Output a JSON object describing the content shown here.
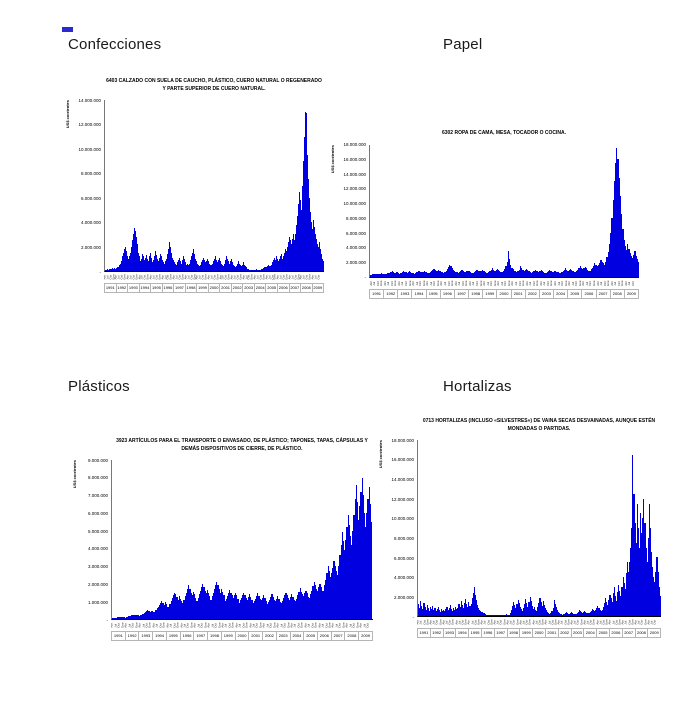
{
  "page": {
    "background": "#ffffff"
  },
  "colors": {
    "bar": "#0000E0",
    "axis": "#000000",
    "year_box_border": "#b5b5b5"
  },
  "sections": [
    {
      "heading": "Confecciones"
    },
    {
      "heading": "Papel"
    },
    {
      "heading": "Plásticos"
    },
    {
      "heading": "Hortalizas"
    }
  ],
  "chart_data": [
    {
      "type": "bar",
      "section": "Confecciones",
      "title": "6403 CALZADO CON SUELA DE CAUCHO, PLÁSTICO, CUERO NATURAL O REGENERADO Y PARTE SUPERIOR DE CUERO NATURAL.",
      "ylabel": "US$ corrientes",
      "unit": "millones de US$ corrientes",
      "frequency": "mensual",
      "x_range": "Ene 1991 - Jun 2009",
      "ylim": [
        0,
        14
      ],
      "grid": false,
      "legend": "none",
      "y_ticks": [
        {
          "label": "14.000.000",
          "value": 14
        },
        {
          "label": "12.000.000",
          "value": 12
        },
        {
          "label": "10.000.000",
          "value": 10
        },
        {
          "label": "8.000.000",
          "value": 8
        },
        {
          "label": "6.000.000",
          "value": 6
        },
        {
          "label": "4.000.000",
          "value": 4
        },
        {
          "label": "2.000.000",
          "value": 2
        },
        {
          "label": "-",
          "value": 0
        }
      ],
      "years": [
        "1991",
        "1992",
        "1993",
        "1994",
        "1995",
        "1996",
        "1997",
        "1998",
        "1999",
        "2000",
        "2001",
        "2002",
        "2003",
        "2004",
        "2005",
        "2006",
        "2007",
        "2008",
        "2009"
      ],
      "month_ticks": [
        "Ene",
        "Abr",
        "Jul",
        "Oct"
      ],
      "values_millions": [
        0.1,
        0.12,
        0.15,
        0.12,
        0.18,
        0.15,
        0.2,
        0.22,
        0.18,
        0.25,
        0.2,
        0.28,
        0.3,
        0.35,
        0.5,
        0.6,
        0.8,
        1.2,
        1.5,
        1.8,
        2.0,
        1.6,
        1.2,
        1.0,
        1.2,
        1.5,
        2.0,
        2.5,
        3.0,
        3.5,
        3.3,
        2.8,
        2.2,
        1.8,
        1.5,
        1.2,
        0.8,
        1.0,
        1.4,
        1.2,
        0.9,
        1.1,
        1.3,
        1.0,
        0.8,
        1.2,
        1.5,
        1.1,
        0.7,
        0.9,
        1.2,
        1.6,
        1.3,
        1.0,
        0.8,
        1.1,
        1.4,
        1.2,
        0.9,
        0.7,
        0.6,
        0.8,
        1.0,
        1.4,
        1.8,
        2.4,
        2.0,
        1.5,
        1.1,
        0.9,
        0.7,
        0.6,
        0.5,
        0.7,
        0.9,
        1.1,
        0.8,
        0.6,
        0.9,
        1.2,
        1.0,
        0.7,
        0.5,
        0.6,
        0.5,
        0.6,
        0.9,
        1.2,
        1.5,
        1.8,
        1.4,
        1.0,
        0.8,
        0.6,
        0.5,
        0.4,
        0.4,
        0.5,
        0.7,
        0.9,
        1.1,
        0.9,
        0.7,
        0.8,
        1.0,
        0.8,
        0.6,
        0.5,
        0.5,
        0.6,
        0.8,
        1.0,
        1.2,
        0.9,
        0.7,
        0.9,
        1.1,
        0.8,
        0.6,
        0.5,
        0.4,
        0.6,
        0.9,
        1.2,
        1.0,
        0.8,
        0.6,
        0.8,
        1.0,
        0.7,
        0.5,
        0.4,
        0.3,
        0.4,
        0.6,
        0.8,
        0.6,
        0.5,
        0.4,
        0.5,
        0.7,
        0.5,
        0.4,
        0.3,
        0.2,
        0.15,
        0.1,
        0.08,
        0.1,
        0.12,
        0.1,
        0.08,
        0.1,
        0.15,
        0.12,
        0.1,
        0.1,
        0.12,
        0.15,
        0.2,
        0.25,
        0.2,
        0.3,
        0.35,
        0.3,
        0.4,
        0.5,
        0.45,
        0.4,
        0.5,
        0.7,
        0.9,
        1.1,
        0.9,
        1.2,
        1.0,
        0.8,
        1.0,
        1.2,
        1.4,
        1.0,
        1.2,
        1.5,
        1.8,
        1.6,
        2.0,
        2.4,
        2.8,
        2.5,
        2.2,
        2.6,
        3.0,
        2.5,
        3.0,
        3.8,
        4.5,
        5.5,
        6.5,
        5.8,
        5.0,
        7.0,
        9.0,
        11.0,
        13.0,
        12.9,
        9.5,
        7.5,
        6.0,
        4.8,
        4.0,
        3.4,
        4.2,
        3.6,
        3.0,
        2.6,
        2.2,
        2.0,
        2.4,
        1.8,
        1.4,
        1.0,
        0.8
      ]
    },
    {
      "type": "bar",
      "section": "Papel",
      "title": "6302 ROPA DE CAMA, MESA, TOCADOR O COCINA.",
      "ylabel": "US$ corrientes",
      "unit": "millones de US$ corrientes",
      "frequency": "mensual",
      "x_range": "Ene 1991 - Jun 2009",
      "ylim": [
        0,
        18
      ],
      "grid": false,
      "legend": "none",
      "y_ticks": [
        {
          "label": "18.000.000",
          "value": 18
        },
        {
          "label": "16.000.000",
          "value": 16
        },
        {
          "label": "14.000.000",
          "value": 14
        },
        {
          "label": "12.000.000",
          "value": 12
        },
        {
          "label": "10.000.000",
          "value": 10
        },
        {
          "label": "8.000.000",
          "value": 8
        },
        {
          "label": "6.000.000",
          "value": 6
        },
        {
          "label": "4.000.000",
          "value": 4
        },
        {
          "label": "2.000.000",
          "value": 2
        },
        {
          "label": "-",
          "value": 0
        }
      ],
      "years": [
        "1991",
        "1992",
        "1993",
        "1994",
        "1995",
        "1996",
        "1997",
        "1998",
        "1999",
        "2000",
        "2001",
        "2002",
        "2003",
        "2004",
        "2005",
        "2006",
        "2007",
        "2008",
        "2009"
      ],
      "month_ticks": [
        "Ene",
        "Abr",
        "Jul",
        "Oct"
      ],
      "values_millions": [
        0.2,
        0.25,
        0.3,
        0.28,
        0.35,
        0.3,
        0.4,
        0.35,
        0.3,
        0.45,
        0.4,
        0.35,
        0.3,
        0.4,
        0.5,
        0.45,
        0.6,
        0.55,
        0.7,
        0.6,
        0.5,
        0.65,
        0.55,
        0.45,
        0.4,
        0.5,
        0.6,
        0.7,
        0.65,
        0.55,
        0.5,
        0.6,
        0.7,
        0.6,
        0.5,
        0.45,
        0.4,
        0.5,
        0.65,
        0.8,
        0.7,
        0.6,
        0.55,
        0.65,
        0.75,
        0.65,
        0.55,
        0.5,
        0.5,
        0.6,
        0.75,
        0.9,
        1.0,
        0.85,
        0.7,
        0.8,
        0.9,
        0.75,
        0.6,
        0.55,
        0.5,
        0.65,
        0.8,
        1.0,
        1.3,
        1.6,
        1.4,
        1.1,
        0.9,
        0.75,
        0.6,
        0.55,
        0.5,
        0.6,
        0.7,
        0.85,
        0.75,
        0.65,
        0.6,
        0.7,
        0.8,
        0.7,
        0.6,
        0.5,
        0.45,
        0.55,
        0.7,
        0.85,
        0.95,
        0.8,
        0.7,
        0.8,
        0.9,
        0.75,
        0.6,
        0.5,
        0.5,
        0.6,
        0.75,
        0.9,
        1.1,
        0.95,
        0.8,
        0.9,
        1.0,
        0.85,
        0.7,
        0.6,
        0.6,
        0.8,
        1.0,
        1.4,
        2.0,
        3.5,
        2.4,
        1.6,
        1.2,
        1.0,
        0.8,
        0.7,
        0.6,
        0.7,
        0.9,
        1.5,
        1.2,
        0.9,
        0.8,
        0.9,
        1.0,
        0.85,
        0.7,
        0.6,
        0.5,
        0.6,
        0.75,
        0.9,
        0.8,
        0.7,
        0.65,
        0.75,
        0.85,
        0.7,
        0.6,
        0.5,
        0.45,
        0.55,
        0.7,
        0.85,
        0.75,
        0.65,
        0.6,
        0.7,
        0.8,
        0.65,
        0.55,
        0.5,
        0.5,
        0.6,
        0.75,
        0.95,
        1.1,
        0.9,
        0.8,
        0.9,
        1.05,
        0.9,
        0.75,
        0.65,
        0.6,
        0.75,
        0.95,
        1.2,
        1.4,
        1.2,
        1.0,
        1.1,
        1.3,
        1.1,
        0.9,
        0.8,
        0.8,
        1.0,
        1.2,
        1.5,
        1.8,
        1.6,
        1.4,
        1.6,
        1.9,
        2.2,
        2.0,
        1.8,
        1.6,
        2.0,
        2.6,
        3.4,
        4.5,
        6.0,
        8.0,
        10.5,
        13.0,
        15.5,
        17.5,
        16.0,
        13.5,
        11.0,
        8.5,
        6.5,
        5.0,
        4.2,
        3.6,
        4.4,
        3.8,
        3.2,
        2.8,
        2.5,
        3.0,
        3.5,
        2.8,
        2.4,
        2.0,
        1.6
      ]
    },
    {
      "type": "bar",
      "section": "Plásticos",
      "title": "3923 ARTÍCULOS PARA EL TRANSPORTE O ENVASADO, DE PLÁSTICO; TAPONES, TAPAS, CÁPSULAS Y DEMÁS DISPOSITIVOS DE CIERRE, DE PLÁSTICO.",
      "ylabel": "US$ corrientes",
      "unit": "millones de US$ corrientes",
      "frequency": "mensual",
      "x_range": "Ene 1991 - Jun 2009",
      "ylim": [
        0,
        9
      ],
      "grid": false,
      "legend": "none",
      "y_ticks": [
        {
          "label": "9.000.000",
          "value": 9
        },
        {
          "label": "8.000.000",
          "value": 8
        },
        {
          "label": "7.000.000",
          "value": 7
        },
        {
          "label": "6.000.000",
          "value": 6
        },
        {
          "label": "5.000.000",
          "value": 5
        },
        {
          "label": "4.000.000",
          "value": 4
        },
        {
          "label": "3.000.000",
          "value": 3
        },
        {
          "label": "2.000.000",
          "value": 2
        },
        {
          "label": "1.000.000",
          "value": 1
        },
        {
          "label": "-",
          "value": 0
        }
      ],
      "years": [
        "1991",
        "1992",
        "1993",
        "1994",
        "1995",
        "1996",
        "1997",
        "1998",
        "1999",
        "2000",
        "2001",
        "2002",
        "2003",
        "2004",
        "2005",
        "2006",
        "2007",
        "2008",
        "2009"
      ],
      "month_ticks": [
        "Ene",
        "Abr",
        "Jul",
        "Oct"
      ],
      "values_millions": [
        0.05,
        0.06,
        0.08,
        0.07,
        0.09,
        0.1,
        0.12,
        0.1,
        0.09,
        0.11,
        0.1,
        0.08,
        0.1,
        0.12,
        0.15,
        0.18,
        0.2,
        0.22,
        0.25,
        0.22,
        0.2,
        0.24,
        0.22,
        0.18,
        0.2,
        0.25,
        0.3,
        0.35,
        0.4,
        0.45,
        0.5,
        0.45,
        0.4,
        0.48,
        0.44,
        0.38,
        0.4,
        0.5,
        0.6,
        0.7,
        0.8,
        0.9,
        1.0,
        0.9,
        0.8,
        0.95,
        0.85,
        0.7,
        0.7,
        0.85,
        1.0,
        1.2,
        1.35,
        1.5,
        1.4,
        1.25,
        1.1,
        1.3,
        1.15,
        1.0,
        0.9,
        1.1,
        1.3,
        1.5,
        1.7,
        1.9,
        1.7,
        1.5,
        1.35,
        1.55,
        1.4,
        1.2,
        1.0,
        1.2,
        1.4,
        1.6,
        1.8,
        2.0,
        1.8,
        1.6,
        1.45,
        1.65,
        1.5,
        1.3,
        1.1,
        1.3,
        1.5,
        1.7,
        1.9,
        2.1,
        1.9,
        1.7,
        1.5,
        1.7,
        1.55,
        1.35,
        1.0,
        1.15,
        1.3,
        1.5,
        1.65,
        1.5,
        1.35,
        1.2,
        1.35,
        1.5,
        1.35,
        1.15,
        0.9,
        1.05,
        1.2,
        1.35,
        1.5,
        1.35,
        1.2,
        1.1,
        1.25,
        1.4,
        1.25,
        1.05,
        0.9,
        1.0,
        1.15,
        1.3,
        1.45,
        1.3,
        1.15,
        1.05,
        1.2,
        1.35,
        1.2,
        1.0,
        0.85,
        0.95,
        1.1,
        1.25,
        1.4,
        1.25,
        1.1,
        1.0,
        1.15,
        1.3,
        1.15,
        0.95,
        0.9,
        1.0,
        1.2,
        1.35,
        1.5,
        1.35,
        1.2,
        1.1,
        1.25,
        1.4,
        1.25,
        1.05,
        1.0,
        1.15,
        1.35,
        1.55,
        1.75,
        1.55,
        1.4,
        1.3,
        1.45,
        1.6,
        1.45,
        1.25,
        1.2,
        1.4,
        1.6,
        1.85,
        2.1,
        1.9,
        1.7,
        1.6,
        1.8,
        2.0,
        1.8,
        1.6,
        1.6,
        1.9,
        2.2,
        2.6,
        3.0,
        2.7,
        2.4,
        2.6,
        2.9,
        3.3,
        3.0,
        2.7,
        2.5,
        3.0,
        3.6,
        4.2,
        4.9,
        4.4,
        3.9,
        4.5,
        5.2,
        5.9,
        5.3,
        4.7,
        4.2,
        5.0,
        5.9,
        6.8,
        7.6,
        6.6,
        5.6,
        6.4,
        7.2,
        8.0,
        7.0,
        6.0,
        5.2,
        6.0,
        6.8,
        7.5,
        6.5,
        5.5
      ]
    },
    {
      "type": "bar",
      "section": "Hortalizas",
      "title": "0713 HORTALIZAS (INCLUSO «SILVESTRES») DE VAINA SECAS DESVAINADAS, AUNQUE ESTÉN MONDADAS O PARTIDAS.",
      "ylabel": "US$ corrientes",
      "unit": "millones de US$ corrientes",
      "frequency": "mensual",
      "x_range": "Ene 1991 - Jun 2009",
      "ylim": [
        0,
        18
      ],
      "grid": false,
      "legend": "none",
      "y_ticks": [
        {
          "label": "18.000.000",
          "value": 18
        },
        {
          "label": "16.000.000",
          "value": 16
        },
        {
          "label": "14.000.000",
          "value": 14
        },
        {
          "label": "12.000.000",
          "value": 12
        },
        {
          "label": "10.000.000",
          "value": 10
        },
        {
          "label": "8.000.000",
          "value": 8
        },
        {
          "label": "6.000.000",
          "value": 6
        },
        {
          "label": "4.000.000",
          "value": 4
        },
        {
          "label": "2.000.000",
          "value": 2
        },
        {
          "label": "-",
          "value": 0
        }
      ],
      "years": [
        "1991",
        "1992",
        "1993",
        "1994",
        "1995",
        "1996",
        "1997",
        "1998",
        "1999",
        "2000",
        "2001",
        "2002",
        "2003",
        "2004",
        "2005",
        "2006",
        "2007",
        "2008",
        "2009"
      ],
      "month_ticks": [
        "Ene",
        "Abr",
        "Jul",
        "Oct"
      ],
      "values_millions": [
        1.2,
        0.8,
        1.5,
        1.0,
        0.7,
        1.3,
        0.9,
        0.6,
        1.1,
        0.8,
        0.5,
        0.9,
        0.7,
        1.0,
        0.6,
        0.8,
        0.5,
        0.7,
        0.9,
        0.6,
        0.4,
        0.7,
        0.5,
        0.6,
        0.5,
        0.7,
        0.9,
        0.6,
        0.8,
        1.1,
        0.7,
        0.5,
        0.8,
        0.6,
        0.9,
        0.7,
        0.8,
        1.2,
        0.9,
        1.5,
        1.1,
        0.8,
        1.3,
        1.7,
        1.2,
        0.9,
        1.4,
        1.0,
        1.2,
        1.8,
        2.4,
        3.0,
        2.2,
        1.6,
        1.1,
        0.8,
        0.6,
        0.5,
        0.4,
        0.3,
        0.3,
        0.2,
        0.15,
        0.1,
        0.12,
        0.1,
        0.08,
        0.1,
        0.12,
        0.1,
        0.08,
        0.1,
        0.1,
        0.12,
        0.15,
        0.1,
        0.08,
        0.1,
        0.12,
        0.15,
        0.2,
        0.15,
        0.1,
        0.12,
        0.3,
        0.6,
        1.0,
        1.4,
        1.1,
        0.8,
        1.2,
        1.6,
        1.3,
        0.9,
        0.7,
        0.5,
        0.8,
        1.2,
        1.7,
        1.3,
        0.9,
        1.4,
        1.9,
        1.5,
        1.0,
        0.7,
        0.9,
        0.6,
        0.5,
        0.9,
        1.3,
        1.8,
        1.4,
        1.0,
        1.5,
        1.1,
        0.8,
        0.6,
        0.4,
        0.3,
        0.2,
        0.3,
        0.5,
        0.8,
        1.6,
        1.2,
        0.9,
        0.6,
        0.4,
        0.3,
        0.25,
        0.2,
        0.15,
        0.2,
        0.3,
        0.4,
        0.3,
        0.25,
        0.2,
        0.3,
        0.4,
        0.3,
        0.25,
        0.2,
        0.2,
        0.3,
        0.45,
        0.6,
        0.5,
        0.4,
        0.35,
        0.45,
        0.55,
        0.45,
        0.35,
        0.3,
        0.3,
        0.4,
        0.55,
        0.7,
        0.6,
        0.5,
        0.6,
        0.8,
        1.0,
        0.8,
        0.6,
        0.5,
        0.6,
        0.9,
        1.3,
        1.8,
        1.4,
        1.1,
        1.6,
        2.2,
        1.8,
        1.4,
        2.4,
        3.0,
        2.0,
        1.5,
        2.5,
        3.2,
        2.6,
        2.0,
        3.0,
        4.0,
        3.4,
        2.8,
        4.4,
        5.5,
        4.5,
        5.5,
        7.0,
        9.0,
        16.5,
        12.5,
        9.5,
        7.5,
        11.5,
        9.0,
        7.0,
        10.5,
        8.5,
        10.0,
        12.0,
        9.5,
        7.0,
        5.5,
        8.0,
        11.5,
        9.0,
        6.5,
        5.0,
        4.0,
        3.5,
        4.5,
        6.0,
        4.5,
        3.0,
        2.0
      ]
    }
  ]
}
